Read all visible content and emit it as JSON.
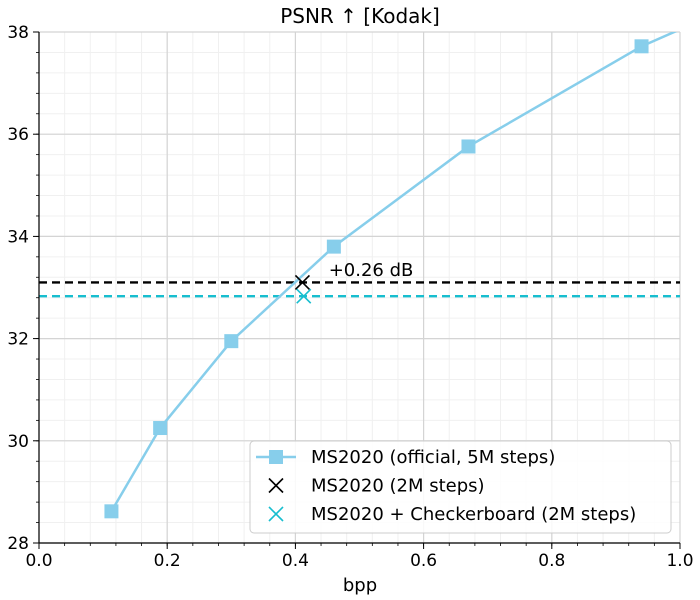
{
  "chart_data": {
    "type": "line",
    "title": "PSNR ↑  [Kodak]",
    "xlabel": "bpp",
    "ylabel": "",
    "xlim": [
      0.0,
      1.0
    ],
    "ylim": [
      28,
      38
    ],
    "x_ticks": [
      "0.0",
      "0.2",
      "0.4",
      "0.6",
      "0.8",
      "1.0"
    ],
    "y_ticks": [
      "28",
      "30",
      "32",
      "34",
      "36",
      "38"
    ],
    "grid": true,
    "legend_position": "lower-right",
    "series": [
      {
        "name": "MS2020 (official, 5M steps)",
        "type": "line",
        "marker": "square",
        "color": "#87CEEB",
        "x": [
          0.113,
          0.189,
          0.3,
          0.46,
          0.67,
          0.94,
          1.0
        ],
        "y": [
          28.62,
          30.25,
          31.95,
          33.8,
          35.76,
          37.72,
          38.05
        ],
        "marker_count": 6
      },
      {
        "name": "MS2020 (2M steps)",
        "type": "scatter",
        "marker": "x",
        "color": "#000000",
        "x": [
          0.411
        ],
        "y": [
          33.1
        ],
        "hline": 33.1
      },
      {
        "name": "MS2020 + Checkerboard (2M steps)",
        "type": "scatter",
        "marker": "x",
        "color": "#17BECF",
        "x": [
          0.413
        ],
        "y": [
          32.83
        ],
        "hline": 32.83
      }
    ],
    "annotations": [
      {
        "text": "+0.26 dB",
        "x": 0.452,
        "y": 33.34
      }
    ]
  }
}
